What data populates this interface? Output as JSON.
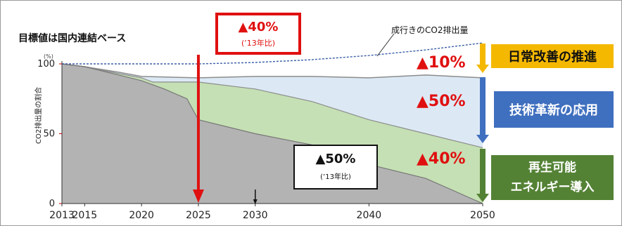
{
  "chart_data": {
    "type": "area",
    "title": "目標値は国内連結ベース",
    "unit": "(%)",
    "ylabel": "CO2排出量の割合",
    "ylim": [
      0,
      100
    ],
    "yticks": [
      0,
      50,
      100
    ],
    "xlim": [
      2013,
      2050
    ],
    "xticks": [
      2013,
      2015,
      2020,
      2025,
      2030,
      2040,
      2050
    ],
    "bau_label": "成行きのCO2排出量",
    "series": [
      {
        "name": "成行きのCO2排出量",
        "x": [
          2013,
          2020,
          2025,
          2030,
          2035,
          2040,
          2045,
          2050
        ],
        "values": [
          100,
          100,
          100,
          101,
          103,
          106,
          110,
          115
        ]
      },
      {
        "name": "日常改善の推進",
        "x": [
          2013,
          2015,
          2018,
          2020,
          2025,
          2030,
          2035,
          2040,
          2045,
          2050
        ],
        "values": [
          100,
          98,
          94,
          91,
          90,
          91,
          91,
          90,
          92,
          90
        ]
      },
      {
        "name": "技術革新の応用",
        "x": [
          2013,
          2015,
          2018,
          2020,
          2021,
          2025,
          2030,
          2035,
          2040,
          2045,
          2050
        ],
        "values": [
          100,
          98,
          93,
          90,
          87,
          87,
          82,
          73,
          60,
          50,
          40
        ]
      },
      {
        "name": "再生可能エネルギー導入",
        "x": [
          2013,
          2015,
          2018,
          2020,
          2022,
          2024,
          2025,
          2030,
          2035,
          2040,
          2045,
          2050
        ],
        "values": [
          100,
          98,
          92,
          88,
          82,
          75,
          60,
          50,
          42,
          28,
          18,
          0
        ]
      }
    ]
  },
  "annotations": {
    "callout_2025_pct": "▲40%",
    "callout_2025_note": "(’13年比)",
    "callout_2030_pct": "▲50%",
    "callout_2030_note": "(’13年比)",
    "pct_kaizen": "▲10%",
    "pct_gijutsu": "▲50%",
    "pct_saisei": "▲40%"
  },
  "legend_boxes": {
    "kaizen": "日常改善の推進",
    "gijutsu": "技術革新の応用",
    "saisei_line1": "再生可能",
    "saisei_line2": "エネルギー導入"
  },
  "colors": {
    "gray_area": "#b3b3b3",
    "green_area": "#c5e0b4",
    "blue_area": "#dce9f5",
    "bau_line": "#3a5fa8",
    "red": "#e01010",
    "kaizen_box": "#f5b800",
    "gijutsu_box": "#3f6fbf",
    "saisei_box": "#548235"
  }
}
